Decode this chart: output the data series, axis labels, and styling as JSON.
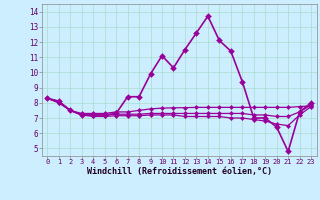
{
  "bg_color": "#cceeff",
  "line_color": "#990099",
  "grid_color": "#aaddcc",
  "xlabel": "Windchill (Refroidissement éolien,°C)",
  "xlim": [
    -0.5,
    23.5
  ],
  "ylim": [
    4.5,
    14.5
  ],
  "yticks": [
    5,
    6,
    7,
    8,
    9,
    10,
    11,
    12,
    13,
    14
  ],
  "xticks": [
    0,
    1,
    2,
    3,
    4,
    5,
    6,
    7,
    8,
    9,
    10,
    11,
    12,
    13,
    14,
    15,
    16,
    17,
    18,
    19,
    20,
    21,
    22,
    23
  ],
  "series": [
    {
      "x": [
        0,
        1,
        2,
        3,
        4,
        5,
        6,
        7,
        8,
        9,
        10,
        11,
        12,
        13,
        14,
        15,
        16,
        17,
        18,
        19,
        20,
        21,
        22,
        23
      ],
      "y": [
        8.3,
        8.1,
        7.5,
        7.2,
        7.2,
        7.2,
        7.3,
        8.4,
        8.4,
        9.9,
        11.1,
        10.3,
        11.5,
        12.6,
        13.7,
        12.1,
        11.4,
        9.4,
        7.0,
        7.0,
        6.4,
        4.8,
        7.4,
        8.0
      ],
      "markersize": 3.0,
      "linewidth": 1.2
    },
    {
      "x": [
        0,
        1,
        2,
        3,
        4,
        5,
        6,
        7,
        8,
        9,
        10,
        11,
        12,
        13,
        14,
        15,
        16,
        17,
        18,
        19,
        20,
        21,
        22,
        23
      ],
      "y": [
        8.3,
        8.1,
        7.5,
        7.3,
        7.3,
        7.3,
        7.4,
        7.4,
        7.5,
        7.6,
        7.65,
        7.67,
        7.68,
        7.7,
        7.7,
        7.7,
        7.7,
        7.7,
        7.7,
        7.7,
        7.7,
        7.7,
        7.75,
        7.8
      ],
      "markersize": 2.2,
      "linewidth": 0.9
    },
    {
      "x": [
        0,
        1,
        2,
        3,
        4,
        5,
        6,
        7,
        8,
        9,
        10,
        11,
        12,
        13,
        14,
        15,
        16,
        17,
        18,
        19,
        20,
        21,
        22,
        23
      ],
      "y": [
        8.3,
        8.0,
        7.5,
        7.2,
        7.2,
        7.2,
        7.25,
        7.25,
        7.25,
        7.3,
        7.3,
        7.3,
        7.3,
        7.3,
        7.3,
        7.3,
        7.3,
        7.3,
        7.2,
        7.2,
        7.1,
        7.1,
        7.4,
        7.85
      ],
      "markersize": 2.2,
      "linewidth": 0.9
    },
    {
      "x": [
        0,
        1,
        2,
        3,
        4,
        5,
        6,
        7,
        8,
        9,
        10,
        11,
        12,
        13,
        14,
        15,
        16,
        17,
        18,
        19,
        20,
        21,
        22,
        23
      ],
      "y": [
        8.3,
        8.0,
        7.5,
        7.2,
        7.1,
        7.1,
        7.15,
        7.15,
        7.15,
        7.2,
        7.2,
        7.2,
        7.1,
        7.1,
        7.1,
        7.1,
        7.0,
        7.0,
        6.9,
        6.8,
        6.6,
        6.5,
        7.2,
        7.75
      ],
      "markersize": 2.2,
      "linewidth": 0.9
    }
  ]
}
